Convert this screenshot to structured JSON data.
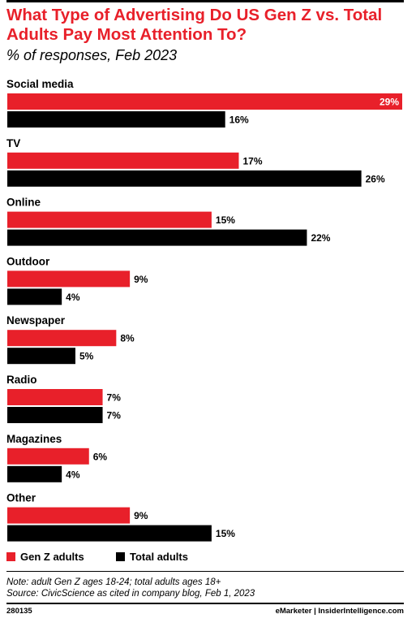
{
  "title": "What Type of Advertising Do US Gen Z vs. Total Adults Pay Most Attention To?",
  "subtitle": "% of responses, Feb 2023",
  "colors": {
    "gen_z": "#e8202a",
    "total": "#000000",
    "title": "#e8202a"
  },
  "chart_data": {
    "type": "bar",
    "orientation": "horizontal",
    "categories": [
      "Social media",
      "TV",
      "Online",
      "Outdoor",
      "Newspaper",
      "Radio",
      "Magazines",
      "Other"
    ],
    "series": [
      {
        "name": "Gen Z adults",
        "values": [
          29,
          17,
          15,
          9,
          8,
          7,
          6,
          9
        ]
      },
      {
        "name": "Total adults",
        "values": [
          16,
          26,
          22,
          4,
          5,
          7,
          4,
          15
        ]
      }
    ],
    "unit": "%",
    "xlim": [
      0,
      29
    ],
    "grid": false,
    "legend_position": "bottom-left"
  },
  "legend": [
    {
      "label": "Gen Z adults",
      "color": "#e8202a"
    },
    {
      "label": "Total adults",
      "color": "#000000"
    }
  ],
  "notes": [
    "Note: adult Gen Z ages 18-24; total adults ages 18+",
    "Source: CivicScience as cited in company blog, Feb 1, 2023"
  ],
  "footer": {
    "id": "280135",
    "brand": "eMarketer | InsiderIntelligence.com"
  }
}
